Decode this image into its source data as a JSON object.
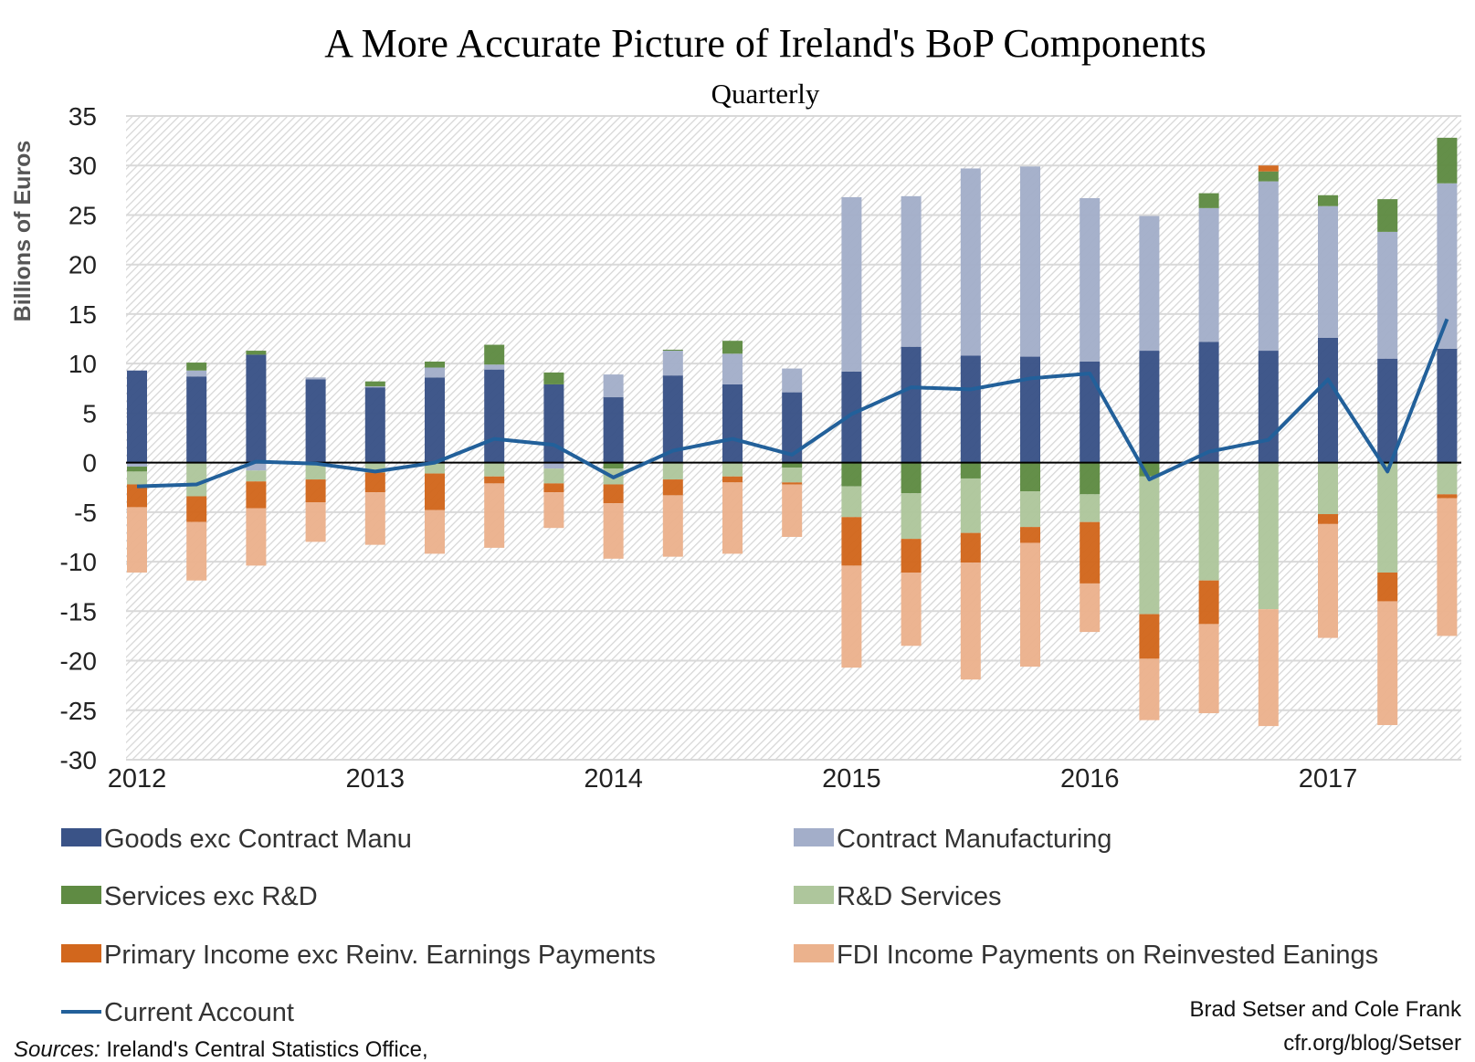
{
  "chart_data": {
    "type": "bar",
    "stacked": true,
    "title": "A More Accurate Picture of Ireland's BoP Components",
    "subtitle": "Quarterly",
    "ylabel": "Billions of Euros",
    "xlabel": "",
    "ylim": [
      -30,
      35
    ],
    "y_ticks": [
      "35",
      "30",
      "25",
      "20",
      "15",
      "10",
      "5",
      "0",
      "-5",
      "-10",
      "-15",
      "-20",
      "-25",
      "-30"
    ],
    "y_tick_values": [
      35,
      30,
      25,
      20,
      15,
      10,
      5,
      0,
      -5,
      -10,
      -15,
      -20,
      -25,
      -30
    ],
    "x_tick_labels": [
      "2012",
      "2013",
      "2014",
      "2015",
      "2016",
      "2017"
    ],
    "categories": [
      "2012Q1",
      "2012Q2",
      "2012Q3",
      "2012Q4",
      "2013Q1",
      "2013Q2",
      "2013Q3",
      "2013Q4",
      "2014Q1",
      "2014Q2",
      "2014Q3",
      "2014Q4",
      "2015Q1",
      "2015Q2",
      "2015Q3",
      "2015Q4",
      "2016Q1",
      "2016Q2",
      "2016Q3",
      "2016Q4",
      "2017Q1",
      "2017Q2",
      "2017Q3"
    ],
    "grid": true,
    "legend_placement": "bottom",
    "series": [
      {
        "name": "Goods exc Contract Manu",
        "type": "bar",
        "color": "#3a5387",
        "values": [
          9.3,
          8.7,
          10.9,
          8.4,
          7.6,
          8.6,
          9.4,
          7.9,
          6.6,
          8.8,
          7.9,
          7.1,
          9.2,
          11.7,
          10.8,
          10.7,
          10.2,
          11.3,
          12.2,
          11.3,
          12.6,
          10.5,
          11.5
        ]
      },
      {
        "name": "Contract Manufacturing",
        "type": "bar",
        "color": "#a3aec9",
        "values": [
          -0.4,
          0.6,
          -0.8,
          0.2,
          0.1,
          1.0,
          0.5,
          -0.6,
          2.3,
          2.5,
          3.1,
          2.4,
          17.6,
          15.2,
          18.9,
          19.2,
          16.5,
          13.6,
          13.5,
          17.1,
          13.3,
          12.8,
          16.7
        ]
      },
      {
        "name": "Services exc R&D",
        "type": "bar",
        "color": "#5f8b43",
        "values": [
          -0.5,
          0.8,
          0.4,
          0,
          0.5,
          0.6,
          2.0,
          1.2,
          -0.6,
          0.1,
          1.3,
          -0.5,
          -2.4,
          -3.1,
          -1.6,
          -2.9,
          -3.2,
          -1.4,
          1.5,
          1.0,
          1.1,
          3.3,
          4.6
        ]
      },
      {
        "name": "R&D Services",
        "type": "bar",
        "color": "#aec69c",
        "values": [
          -1.3,
          -3.4,
          -1.1,
          -1.7,
          -1.0,
          -1.1,
          -1.4,
          -1.5,
          -1.6,
          -1.7,
          -1.4,
          -1.5,
          -3.1,
          -4.6,
          -5.5,
          -3.6,
          -2.8,
          -13.9,
          -11.9,
          -14.8,
          -5.2,
          -11.1,
          -3.2
        ]
      },
      {
        "name": "Primary Income exc Reinv. Earnings Payments",
        "type": "bar",
        "color": "#d2671d",
        "values": [
          -2.3,
          -2.6,
          -2.7,
          -2.3,
          -2.0,
          -3.7,
          -0.7,
          -0.9,
          -1.9,
          -1.6,
          -0.6,
          -0.2,
          -4.9,
          -3.4,
          -3.0,
          -1.6,
          -6.2,
          -4.5,
          -4.4,
          0.6,
          -1.0,
          -2.9,
          -0.4
        ]
      },
      {
        "name": "FDI Income Payments on Reinvested Eanings",
        "type": "bar",
        "color": "#ebb28d",
        "values": [
          -6.6,
          -5.9,
          -5.8,
          -4.0,
          -5.3,
          -4.4,
          -6.5,
          -3.6,
          -5.6,
          -6.2,
          -7.2,
          -5.3,
          -10.3,
          -7.4,
          -11.8,
          -12.5,
          -4.9,
          -6.2,
          -9.0,
          -11.8,
          -11.5,
          -12.5,
          -13.9
        ]
      },
      {
        "name": "Current Account",
        "type": "line",
        "color": "#22609a",
        "values": [
          -2.4,
          -2.2,
          0.1,
          -0.1,
          -0.9,
          0.0,
          2.4,
          1.8,
          -1.5,
          1.2,
          2.4,
          0.8,
          4.9,
          7.6,
          7.4,
          8.5,
          9.0,
          -1.7,
          1.1,
          2.3,
          8.4,
          -0.9,
          14.5
        ]
      }
    ]
  },
  "footer": {
    "authors": "Brad Setser and Cole Frank",
    "url": "cfr.org/blog/Setser",
    "sources_label": "Sources:",
    "sources_text": " Ireland's Central Statistics Office,"
  }
}
